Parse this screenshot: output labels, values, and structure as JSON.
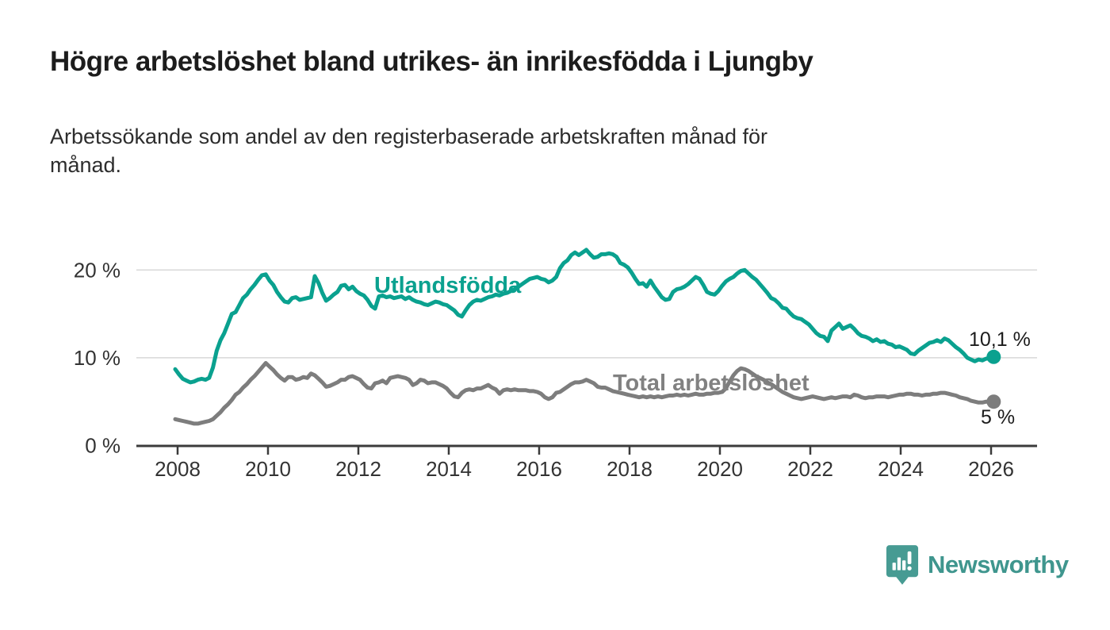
{
  "header": {
    "title": "Högre arbetslöshet bland utrikes- än inrikesfödda i Ljungby",
    "subtitle_lines": [
      "Arbetssökande som andel av den registerbaserade arbetskraften månad för",
      "månad."
    ]
  },
  "branding": {
    "name": "Newsworthy",
    "icon": "speech-bubble-bar-chart",
    "icon_color": "#479b93",
    "text_color": "#3f968e"
  },
  "colors": {
    "teal_line": "#0aa18f",
    "gray_line": "#7d7d7d",
    "gray_label": "#818181",
    "grid": "#d8d8d8",
    "axis": "#3b3b3b",
    "tick_text": "#333333",
    "value_text": "#1c1c1c"
  },
  "chart_data": {
    "type": "line",
    "unit": "%",
    "frequency": "monthly",
    "x_start": {
      "year": 2008,
      "month": 1
    },
    "x_end": {
      "year": 2026,
      "month": 2
    },
    "x_ticks": [
      2008,
      2010,
      2012,
      2014,
      2016,
      2018,
      2020,
      2022,
      2024,
      2026
    ],
    "y_ticks": [
      {
        "value": 0,
        "label": "0 %"
      },
      {
        "value": 10,
        "label": "10 %"
      },
      {
        "value": 20,
        "label": "20 %"
      }
    ],
    "ylim": [
      0,
      23.5
    ],
    "grid": true,
    "legend_position": "inline-labels",
    "series": [
      {
        "name": "Utlandsfödda",
        "color": "#0aa18f",
        "end_label": "10,1 %",
        "end_value": 10.1,
        "values": [
          8.7,
          8.1,
          7.6,
          7.4,
          7.2,
          7.3,
          7.5,
          7.6,
          7.5,
          7.7,
          8.9,
          10.8,
          12.0,
          12.8,
          13.9,
          15.0,
          15.2,
          16.0,
          16.8,
          17.2,
          17.8,
          18.3,
          18.9,
          19.4,
          19.5,
          18.8,
          18.3,
          17.5,
          16.9,
          16.4,
          16.3,
          16.8,
          16.9,
          16.6,
          16.7,
          16.8,
          16.9,
          19.3,
          18.5,
          17.4,
          16.5,
          16.8,
          17.2,
          17.5,
          18.2,
          18.3,
          17.8,
          18.1,
          17.6,
          17.3,
          17.1,
          16.6,
          15.9,
          15.6,
          17.0,
          17.1,
          16.9,
          17.0,
          16.8,
          16.9,
          17.0,
          16.7,
          16.9,
          16.6,
          16.4,
          16.3,
          16.1,
          16.0,
          16.2,
          16.4,
          16.3,
          16.1,
          16.0,
          15.7,
          15.4,
          14.9,
          14.7,
          15.4,
          16.0,
          16.4,
          16.6,
          16.5,
          16.7,
          16.9,
          17.0,
          17.2,
          17.1,
          17.3,
          17.4,
          17.6,
          17.8,
          18.1,
          18.4,
          18.7,
          19.0,
          19.1,
          19.2,
          19.0,
          18.9,
          18.6,
          18.8,
          19.2,
          20.2,
          20.8,
          21.1,
          21.7,
          22.0,
          21.7,
          22.0,
          22.3,
          21.8,
          21.4,
          21.5,
          21.8,
          21.8,
          21.9,
          21.8,
          21.5,
          20.8,
          20.6,
          20.3,
          19.7,
          19.0,
          18.4,
          18.5,
          18.1,
          18.8,
          18.1,
          17.5,
          16.9,
          16.6,
          16.7,
          17.5,
          17.8,
          17.9,
          18.1,
          18.4,
          18.8,
          19.2,
          19.0,
          18.3,
          17.5,
          17.3,
          17.2,
          17.6,
          18.2,
          18.7,
          19.0,
          19.2,
          19.6,
          19.9,
          20.0,
          19.6,
          19.2,
          18.9,
          18.4,
          17.9,
          17.4,
          16.8,
          16.6,
          16.2,
          15.7,
          15.6,
          15.1,
          14.7,
          14.5,
          14.4,
          14.1,
          13.8,
          13.3,
          12.8,
          12.5,
          12.4,
          11.9,
          13.1,
          13.5,
          13.9,
          13.3,
          13.5,
          13.7,
          13.3,
          12.8,
          12.5,
          12.4,
          12.2,
          11.9,
          12.1,
          11.8,
          11.9,
          11.6,
          11.5,
          11.2,
          11.3,
          11.1,
          10.9,
          10.5,
          10.4,
          10.8,
          11.1,
          11.4,
          11.7,
          11.8,
          12.0,
          11.8,
          12.2,
          12.0,
          11.6,
          11.2,
          10.9,
          10.5,
          10.0,
          9.8,
          9.6,
          9.8,
          9.7,
          9.9,
          9.9,
          10.1
        ]
      },
      {
        "name": "Total arbetslöshet",
        "color": "#7d7d7d",
        "end_label": "5 %",
        "end_value": 5.0,
        "values": [
          3.0,
          2.9,
          2.8,
          2.7,
          2.6,
          2.5,
          2.5,
          2.6,
          2.7,
          2.8,
          3.0,
          3.4,
          3.8,
          4.3,
          4.7,
          5.2,
          5.8,
          6.1,
          6.6,
          7.0,
          7.5,
          7.9,
          8.4,
          8.9,
          9.4,
          9.0,
          8.6,
          8.1,
          7.7,
          7.4,
          7.8,
          7.8,
          7.5,
          7.6,
          7.8,
          7.7,
          8.2,
          8.0,
          7.6,
          7.2,
          6.7,
          6.8,
          7.0,
          7.2,
          7.5,
          7.5,
          7.8,
          7.9,
          7.7,
          7.5,
          7.0,
          6.6,
          6.5,
          7.1,
          7.2,
          7.4,
          7.1,
          7.7,
          7.8,
          7.9,
          7.8,
          7.7,
          7.5,
          6.9,
          7.1,
          7.5,
          7.4,
          7.1,
          7.2,
          7.2,
          7.0,
          6.8,
          6.5,
          6.0,
          5.6,
          5.5,
          6.0,
          6.3,
          6.4,
          6.3,
          6.5,
          6.5,
          6.7,
          6.9,
          6.6,
          6.4,
          5.9,
          6.3,
          6.4,
          6.3,
          6.4,
          6.3,
          6.3,
          6.3,
          6.2,
          6.2,
          6.1,
          5.9,
          5.5,
          5.3,
          5.5,
          6.0,
          6.1,
          6.4,
          6.7,
          7.0,
          7.2,
          7.2,
          7.3,
          7.5,
          7.3,
          7.1,
          6.7,
          6.6,
          6.6,
          6.4,
          6.2,
          6.1,
          6.0,
          5.9,
          5.8,
          5.7,
          5.6,
          5.5,
          5.6,
          5.5,
          5.6,
          5.5,
          5.6,
          5.5,
          5.6,
          5.7,
          5.7,
          5.8,
          5.7,
          5.8,
          5.7,
          5.8,
          5.9,
          5.8,
          5.8,
          5.9,
          5.9,
          6.0,
          6.0,
          6.1,
          6.5,
          7.3,
          8.0,
          8.5,
          8.8,
          8.7,
          8.5,
          8.2,
          7.9,
          7.7,
          7.5,
          7.2,
          7.0,
          6.7,
          6.4,
          6.1,
          5.9,
          5.7,
          5.5,
          5.4,
          5.3,
          5.4,
          5.5,
          5.6,
          5.5,
          5.4,
          5.3,
          5.4,
          5.5,
          5.4,
          5.5,
          5.6,
          5.6,
          5.5,
          5.8,
          5.7,
          5.5,
          5.4,
          5.5,
          5.5,
          5.6,
          5.6,
          5.6,
          5.5,
          5.6,
          5.7,
          5.8,
          5.8,
          5.9,
          5.9,
          5.8,
          5.8,
          5.7,
          5.8,
          5.8,
          5.9,
          5.9,
          6.0,
          6.0,
          5.9,
          5.8,
          5.7,
          5.5,
          5.4,
          5.3,
          5.1,
          5.0,
          4.9,
          4.9,
          5.0,
          5.0,
          5.0
        ]
      }
    ]
  }
}
